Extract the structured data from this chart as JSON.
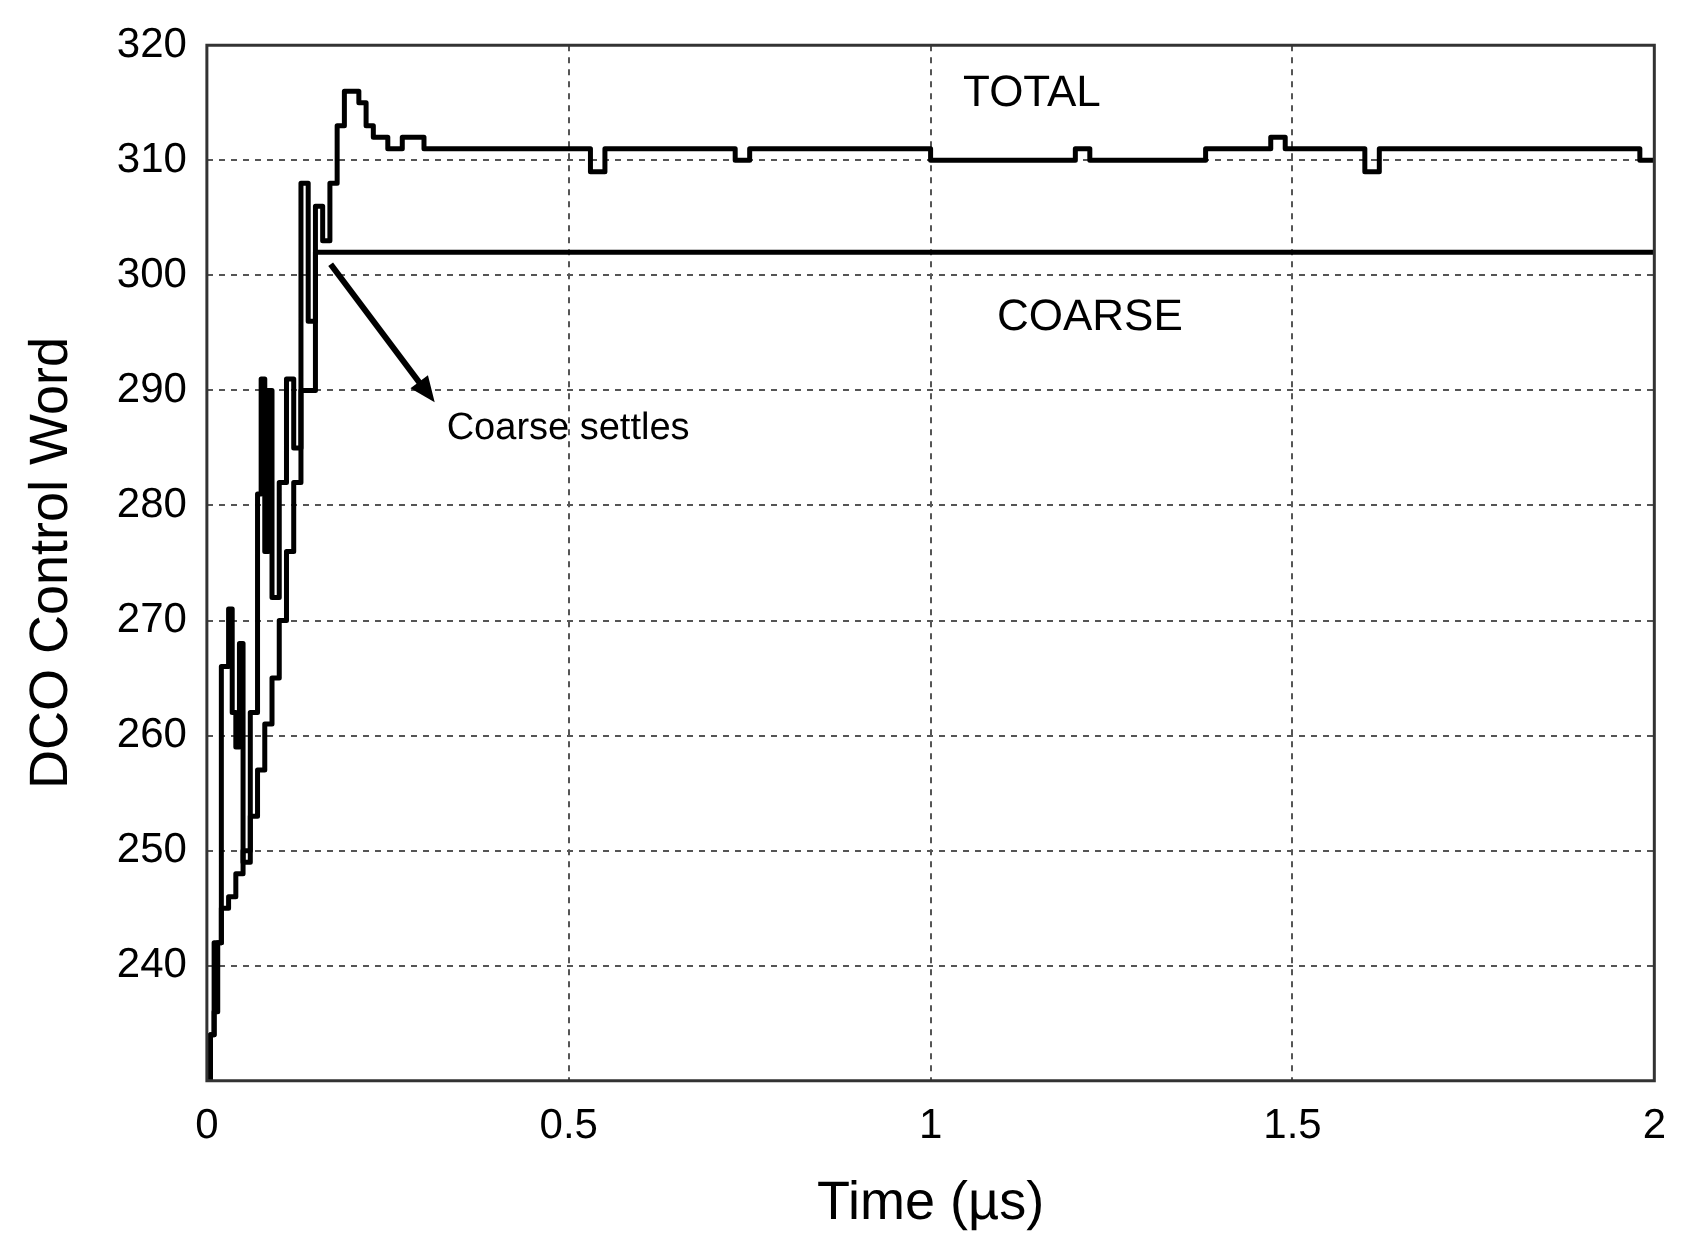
{
  "chart_data": {
    "type": "step",
    "xlabel": "Time (µs)",
    "ylabel": "DCO Control Word",
    "xlim": [
      0,
      2
    ],
    "xticks": [
      0,
      0.5,
      1,
      1.5,
      2
    ],
    "ylim": [
      230,
      320
    ],
    "yticks": [
      240,
      250,
      260,
      270,
      280,
      290,
      300,
      310,
      320
    ],
    "grid": true,
    "legend": false,
    "marker": "none",
    "line_style": "solid",
    "annotations": [
      {
        "text": "Coarse settles",
        "x": 0.16,
        "y": 302
      }
    ],
    "series": [
      {
        "name": "TOTAL",
        "color": "#000000",
        "x": [
          0,
          0.005,
          0.01,
          0.015,
          0.02,
          0.03,
          0.035,
          0.04,
          0.045,
          0.05,
          0.06,
          0.07,
          0.075,
          0.08,
          0.085,
          0.09,
          0.1,
          0.11,
          0.12,
          0.13,
          0.14,
          0.15,
          0.16,
          0.17,
          0.18,
          0.19,
          0.21,
          0.22,
          0.23,
          0.25,
          0.27,
          0.3,
          0.53,
          0.55,
          0.73,
          0.75,
          1.0,
          1.2,
          1.22,
          1.36,
          1.38,
          1.47,
          1.49,
          1.6,
          1.62,
          1.98,
          2
        ],
        "values": [
          230,
          234,
          236,
          242,
          266,
          271,
          262,
          259,
          268,
          249,
          262,
          281,
          291,
          276,
          290,
          272,
          282,
          291,
          285,
          308,
          296,
          306,
          303,
          308,
          313,
          316,
          315,
          313,
          312,
          311,
          312,
          311,
          309,
          311,
          310,
          311,
          310,
          311,
          310,
          310,
          311,
          312,
          311,
          309,
          311,
          310,
          310
        ]
      },
      {
        "name": "COARSE",
        "color": "#000000",
        "x": [
          0,
          0.005,
          0.01,
          0.02,
          0.03,
          0.04,
          0.05,
          0.06,
          0.07,
          0.08,
          0.09,
          0.1,
          0.11,
          0.12,
          0.13,
          0.15,
          2
        ],
        "values": [
          231,
          234,
          242,
          245,
          246,
          248,
          250,
          253,
          257,
          261,
          265,
          270,
          276,
          282,
          290,
          302,
          302
        ]
      }
    ]
  }
}
